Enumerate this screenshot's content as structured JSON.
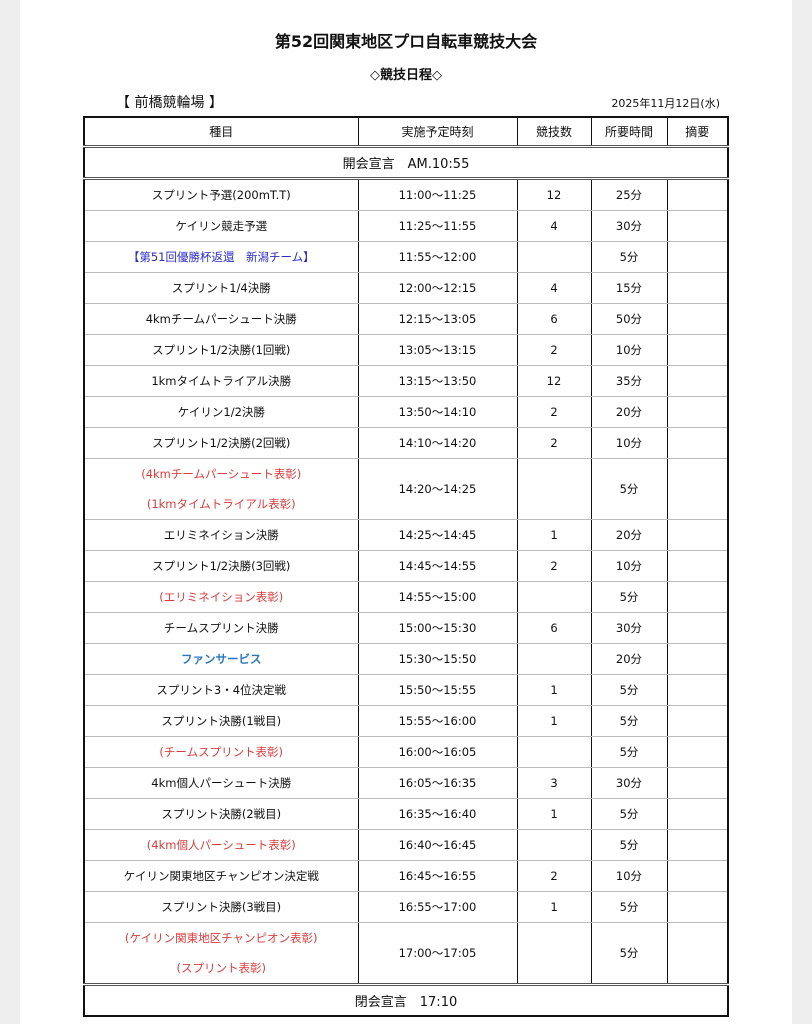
{
  "title": "第52回関東地区プロ自転車競技大会",
  "subtitle": "◇競技日程◇",
  "venue": "【 前橋競輪場 】",
  "date": "2025年11月12日(水)",
  "colors": {
    "red": "#e03a3a",
    "blue": "#2b2bd0",
    "light_blue": "#2878c0"
  },
  "headers": [
    "種目",
    "実施予定時刻",
    "競技数",
    "所要時間",
    "摘要"
  ],
  "opening": "開会宣言　AM.10:55",
  "closing": "閉会宣言　17:10",
  "rows": [
    {
      "event": [
        "スプリント予選(200mT.T)"
      ],
      "time": "11:00〜11:25",
      "count": "12",
      "duration": "25分",
      "note": "",
      "style": ""
    },
    {
      "event": [
        "ケイリン競走予選"
      ],
      "time": "11:25〜11:55",
      "count": "4",
      "duration": "30分",
      "note": "",
      "style": ""
    },
    {
      "event": [
        "【第51回優勝杯返還　新潟チーム】"
      ],
      "time": "11:55〜12:00",
      "count": "",
      "duration": "5分",
      "note": "",
      "style": "blue"
    },
    {
      "event": [
        "スプリント1/4決勝"
      ],
      "time": "12:00〜12:15",
      "count": "4",
      "duration": "15分",
      "note": "",
      "style": ""
    },
    {
      "event": [
        "4kmチームパーシュート決勝"
      ],
      "time": "12:15〜13:05",
      "count": "6",
      "duration": "50分",
      "note": "",
      "style": ""
    },
    {
      "event": [
        "スプリント1/2決勝(1回戦)"
      ],
      "time": "13:05〜13:15",
      "count": "2",
      "duration": "10分",
      "note": "",
      "style": ""
    },
    {
      "event": [
        "1kmタイムトライアル決勝"
      ],
      "time": "13:15〜13:50",
      "count": "12",
      "duration": "35分",
      "note": "",
      "style": ""
    },
    {
      "event": [
        "ケイリン1/2決勝"
      ],
      "time": "13:50〜14:10",
      "count": "2",
      "duration": "20分",
      "note": "",
      "style": ""
    },
    {
      "event": [
        "スプリント1/2決勝(2回戦)"
      ],
      "time": "14:10〜14:20",
      "count": "2",
      "duration": "10分",
      "note": "",
      "style": ""
    },
    {
      "event": [
        "(4kmチームパーシュート表彰)",
        "(1kmタイムトライアル表彰)"
      ],
      "time": "14:20〜14:25",
      "count": "",
      "duration": "5分",
      "note": "",
      "style": "red"
    },
    {
      "event": [
        "エリミネイション決勝"
      ],
      "time": "14:25〜14:45",
      "count": "1",
      "duration": "20分",
      "note": "",
      "style": ""
    },
    {
      "event": [
        "スプリント1/2決勝(3回戦)"
      ],
      "time": "14:45〜14:55",
      "count": "2",
      "duration": "10分",
      "note": "",
      "style": ""
    },
    {
      "event": [
        "(エリミネイション表彰)"
      ],
      "time": "14:55〜15:00",
      "count": "",
      "duration": "5分",
      "note": "",
      "style": "red"
    },
    {
      "event": [
        "チームスプリント決勝"
      ],
      "time": "15:00〜15:30",
      "count": "6",
      "duration": "30分",
      "note": "",
      "style": ""
    },
    {
      "event": [
        "ファンサービス"
      ],
      "time": "15:30〜15:50",
      "count": "",
      "duration": "20分",
      "note": "",
      "style": "lblue"
    },
    {
      "event": [
        "スプリント3・4位決定戦"
      ],
      "time": "15:50〜15:55",
      "count": "1",
      "duration": "5分",
      "note": "",
      "style": ""
    },
    {
      "event": [
        "スプリント決勝(1戦目)"
      ],
      "time": "15:55〜16:00",
      "count": "1",
      "duration": "5分",
      "note": "",
      "style": ""
    },
    {
      "event": [
        "(チームスプリント表彰)"
      ],
      "time": "16:00〜16:05",
      "count": "",
      "duration": "5分",
      "note": "",
      "style": "red"
    },
    {
      "event": [
        "4km個人パーシュート決勝"
      ],
      "time": "16:05〜16:35",
      "count": "3",
      "duration": "30分",
      "note": "",
      "style": ""
    },
    {
      "event": [
        "スプリント決勝(2戦目)"
      ],
      "time": "16:35〜16:40",
      "count": "1",
      "duration": "5分",
      "note": "",
      "style": ""
    },
    {
      "event": [
        "(4km個人パーシュート表彰)"
      ],
      "time": "16:40〜16:45",
      "count": "",
      "duration": "5分",
      "note": "",
      "style": "red"
    },
    {
      "event": [
        "ケイリン関東地区チャンピオン決定戦"
      ],
      "time": "16:45〜16:55",
      "count": "2",
      "duration": "10分",
      "note": "",
      "style": ""
    },
    {
      "event": [
        "スプリント決勝(3戦目)"
      ],
      "time": "16:55〜17:00",
      "count": "1",
      "duration": "5分",
      "note": "",
      "style": ""
    },
    {
      "event": [
        "(ケイリン関東地区チャンピオン表彰)",
        "(スプリント表彰)"
      ],
      "time": "17:00〜17:05",
      "count": "",
      "duration": "5分",
      "note": "",
      "style": "red"
    }
  ]
}
